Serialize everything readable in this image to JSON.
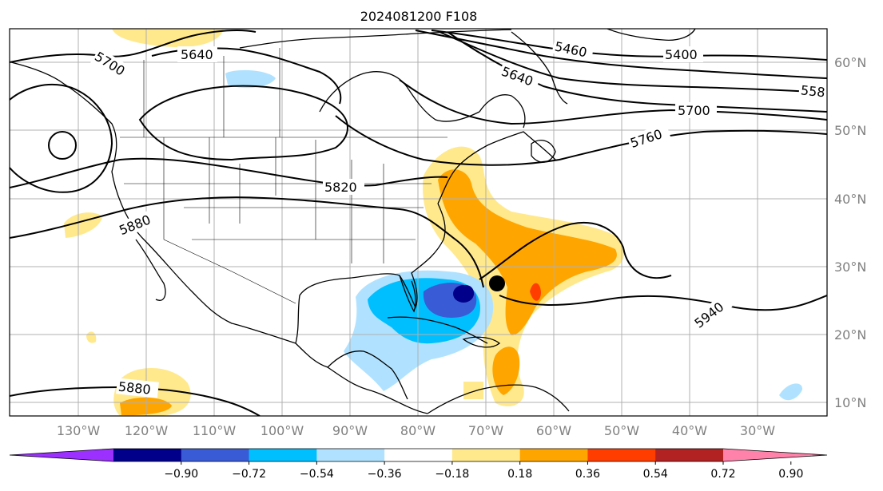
{
  "title": "2024081200 F108",
  "map": {
    "lon_labels": [
      "130°W",
      "120°W",
      "110°W",
      "100°W",
      "90°W",
      "80°W",
      "70°W",
      "60°W",
      "50°W",
      "40°W",
      "30°W"
    ],
    "lat_labels": [
      "60°N",
      "50°N",
      "40°N",
      "30°N",
      "20°N",
      "10°N"
    ],
    "lon_range": [
      -136,
      -16
    ],
    "lat_range": [
      8,
      65
    ]
  },
  "contours": {
    "labels": [
      "5640",
      "5700",
      "5460",
      "5640",
      "5400",
      "558",
      "5700",
      "5760",
      "5820",
      "5880",
      "5940",
      "5880"
    ]
  },
  "markers": [
    {
      "name": "navy-dot",
      "color": "#00008b"
    },
    {
      "name": "black-dot",
      "color": "#000000"
    }
  ],
  "colorbar": {
    "ticks": [
      "−0.90",
      "−0.72",
      "−0.54",
      "−0.36",
      "−0.18",
      "0.18",
      "0.36",
      "0.54",
      "0.72",
      "0.90"
    ],
    "colors": [
      "#9b30ff",
      "#00008b",
      "#3a5bd6",
      "#00bfff",
      "#b0e2ff",
      "#ffffff",
      "#ffe98c",
      "#ffa500",
      "#ff3d00",
      "#b22222",
      "#ff82ab"
    ]
  }
}
